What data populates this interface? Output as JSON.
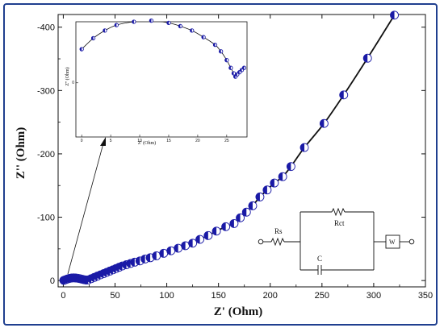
{
  "chart_data": {
    "type": "scatter",
    "xlabel": "Z' (Ohm)",
    "ylabel": "Z'' (Ohm)",
    "xlim": [
      -5,
      350
    ],
    "ylim": [
      -420,
      10
    ],
    "x_ticks": [
      0,
      50,
      100,
      150,
      200,
      250,
      300,
      350
    ],
    "y_ticks": [
      -400,
      -300,
      -200,
      -100,
      0
    ],
    "y_tick_labels": [
      "-400",
      "-300",
      "-200",
      "-100",
      "0"
    ],
    "series": [
      {
        "marker_color": "#1a1aa6",
        "points": [
          [
            0.5,
            -0.3
          ],
          [
            2,
            -1.2
          ],
          [
            4,
            -2.4
          ],
          [
            6,
            -3.4
          ],
          [
            8,
            -4.0
          ],
          [
            10,
            -4.2
          ],
          [
            12,
            -4.0
          ],
          [
            14,
            -3.6
          ],
          [
            16,
            -3.0
          ],
          [
            18,
            -2.2
          ],
          [
            20,
            -1.4
          ],
          [
            22,
            -0.8
          ],
          [
            24,
            -1.0
          ],
          [
            27,
            -3
          ],
          [
            30,
            -5
          ],
          [
            33,
            -7
          ],
          [
            36,
            -9
          ],
          [
            39,
            -11
          ],
          [
            42,
            -13
          ],
          [
            45,
            -15
          ],
          [
            48,
            -17
          ],
          [
            51,
            -19
          ],
          [
            54,
            -21
          ],
          [
            57,
            -23
          ],
          [
            61,
            -25
          ],
          [
            65,
            -27
          ],
          [
            69,
            -29
          ],
          [
            74,
            -31
          ],
          [
            79,
            -34
          ],
          [
            84,
            -36
          ],
          [
            90,
            -39
          ],
          [
            97,
            -43
          ],
          [
            104,
            -47
          ],
          [
            111,
            -51
          ],
          [
            118,
            -55
          ],
          [
            125,
            -59
          ],
          [
            132,
            -65
          ],
          [
            140,
            -71
          ],
          [
            148,
            -78
          ],
          [
            157,
            -85
          ],
          [
            165,
            -90
          ],
          [
            171,
            -99
          ],
          [
            177,
            -108
          ],
          [
            183,
            -118
          ],
          [
            190,
            -132
          ],
          [
            197,
            -143
          ],
          [
            204,
            -154
          ],
          [
            212,
            -164
          ],
          [
            220,
            -180
          ],
          [
            233,
            -210
          ],
          [
            252,
            -248
          ],
          [
            271,
            -293
          ],
          [
            294,
            -351
          ],
          [
            320,
            -419
          ]
        ]
      }
    ],
    "inset": {
      "xlabel": "Z' (Ohm)",
      "ylabel": "Z'' (Ohm)",
      "xlim": [
        -1,
        28.5
      ],
      "ylim": [
        -8.5,
        2
      ],
      "x_ticks": [
        0,
        5,
        10,
        15,
        20,
        25
      ],
      "y_tick_labels": [
        "0"
      ],
      "points": [
        [
          0,
          -6.0
        ],
        [
          2,
          -7.0
        ],
        [
          4,
          -7.7
        ],
        [
          6,
          -8.2
        ],
        [
          9,
          -8.5
        ],
        [
          12,
          -8.6
        ],
        [
          15,
          -8.4
        ],
        [
          17,
          -8.1
        ],
        [
          19,
          -7.7
        ],
        [
          21,
          -7.1
        ],
        [
          23,
          -6.4
        ],
        [
          24,
          -5.8
        ],
        [
          25,
          -5.0
        ],
        [
          25.7,
          -4.3
        ],
        [
          26.2,
          -3.8
        ],
        [
          26.5,
          -3.5
        ],
        [
          26.8,
          -3.7
        ],
        [
          27.2,
          -3.9
        ],
        [
          27.6,
          -4.1
        ],
        [
          28,
          -4.3
        ]
      ]
    },
    "circuit": {
      "labels": [
        "Rs",
        "Rct",
        "C",
        "W"
      ]
    }
  }
}
